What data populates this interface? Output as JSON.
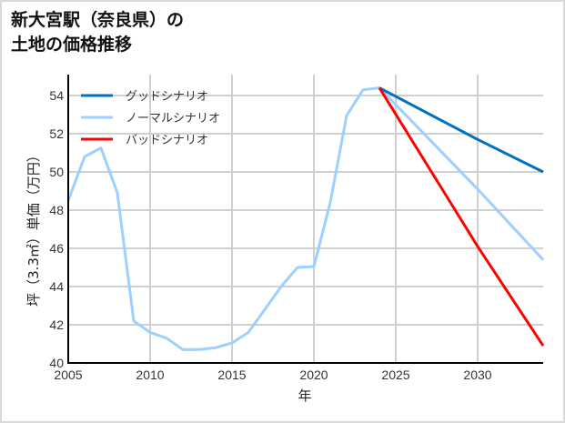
{
  "title": {
    "line1": "新大宮駅（奈良県）の",
    "line2": "土地の価格推移"
  },
  "chart_data": {
    "type": "line",
    "title": "新大宮駅（奈良県）の土地の価格推移",
    "xlabel": "年",
    "ylabel": "坪（3.3㎡）単価（万円）",
    "xlim": [
      2005,
      2034
    ],
    "ylim": [
      40,
      55
    ],
    "x_ticks": [
      2005,
      2010,
      2015,
      2020,
      2025,
      2030
    ],
    "y_ticks": [
      40,
      42,
      44,
      46,
      48,
      50,
      52,
      54
    ],
    "grid": true,
    "legend_position": "upper left",
    "series": [
      {
        "name": "グッドシナリオ",
        "color": "#0070c0",
        "x": [
          2024,
          2030,
          2034
        ],
        "values": [
          54.4,
          51.7,
          50.0
        ]
      },
      {
        "name": "ノーマルシナリオ",
        "color": "#9dcfff",
        "x": [
          2005,
          2006,
          2007,
          2008,
          2009,
          2010,
          2011,
          2012,
          2013,
          2014,
          2015,
          2016,
          2017,
          2018,
          2019,
          2020,
          2021,
          2022,
          2023,
          2024,
          2030,
          2034
        ],
        "values": [
          48.5,
          50.8,
          51.25,
          48.9,
          42.2,
          41.6,
          41.3,
          40.7,
          40.7,
          40.8,
          41.05,
          41.6,
          42.8,
          44.0,
          45.0,
          45.05,
          48.4,
          52.95,
          54.3,
          54.4,
          49.1,
          45.4
        ]
      },
      {
        "name": "バッドシナリオ",
        "color": "#ff0000",
        "x": [
          2024,
          2030,
          2034
        ],
        "values": [
          54.4,
          46.1,
          40.9
        ]
      }
    ]
  },
  "axes": {
    "xlabel": "年",
    "ylabel": "坪（3.3㎡）単価（万円）",
    "x_tick_labels": [
      "2005",
      "2010",
      "2015",
      "2020",
      "2025",
      "2030"
    ],
    "y_tick_labels": [
      "40",
      "42",
      "44",
      "46",
      "48",
      "50",
      "52",
      "54"
    ]
  },
  "legend": {
    "items": [
      {
        "label": "グッドシナリオ",
        "color": "#0070c0"
      },
      {
        "label": "ノーマルシナリオ",
        "color": "#9dcfff"
      },
      {
        "label": "バッドシナリオ",
        "color": "#ff0000"
      }
    ]
  }
}
